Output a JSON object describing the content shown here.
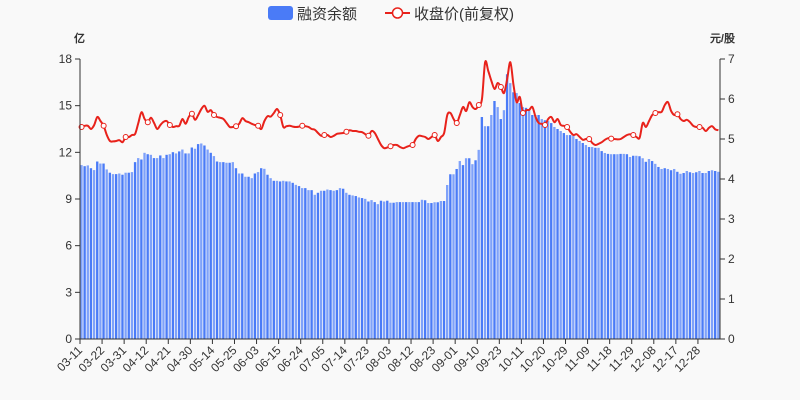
{
  "chart_data": {
    "type": "bar+line",
    "legend": {
      "placement": "top-center",
      "items": [
        "融资余额",
        "收盘价(前复权)"
      ]
    },
    "left_axis": {
      "name": "亿",
      "range": [
        0,
        18
      ],
      "ticks": [
        "0",
        "3",
        "6",
        "9",
        "12",
        "15",
        "18"
      ]
    },
    "right_axis": {
      "name": "元/股",
      "range": [
        0,
        7
      ],
      "ticks": [
        "0",
        "1",
        "2",
        "3",
        "4",
        "5",
        "6",
        "7"
      ]
    },
    "x_tick_labels": [
      "03-11",
      "03-22",
      "03-31",
      "04-12",
      "04-21",
      "04-30",
      "05-14",
      "05-25",
      "06-03",
      "06-15",
      "06-24",
      "07-05",
      "07-14",
      "07-23",
      "08-03",
      "08-12",
      "08-23",
      "09-01",
      "09-10",
      "09-23",
      "10-11",
      "10-20",
      "10-29",
      "11-09",
      "11-18",
      "11-29",
      "12-08",
      "12-17",
      "12-28"
    ],
    "x_tick_interval": 7,
    "colors": {
      "bar": "#4a7bf7",
      "bar_alt": "#7fa2fa",
      "line": "#e8221b",
      "marker_fill": "#ffffff"
    },
    "series": [
      {
        "name": "融资余额",
        "type": "bar",
        "axis": "left",
        "values": [
          11.18,
          11.11,
          11.16,
          10.98,
          10.86,
          11.41,
          11.28,
          11.28,
          10.9,
          10.69,
          10.6,
          10.6,
          10.64,
          10.56,
          10.69,
          10.69,
          10.73,
          11.37,
          11.63,
          11.54,
          11.97,
          11.88,
          11.84,
          11.63,
          11.63,
          11.8,
          11.63,
          11.84,
          11.88,
          12.01,
          11.93,
          12.06,
          12.18,
          11.93,
          11.93,
          12.31,
          12.23,
          12.53,
          12.57,
          12.44,
          12.18,
          11.97,
          11.76,
          11.41,
          11.37,
          11.37,
          11.33,
          11.33,
          11.37,
          10.98,
          10.64,
          10.64,
          10.43,
          10.43,
          10.34,
          10.64,
          10.73,
          10.98,
          10.94,
          10.56,
          10.34,
          10.17,
          10.17,
          10.13,
          10.17,
          10.13,
          10.13,
          10.04,
          9.91,
          9.83,
          9.7,
          9.7,
          9.57,
          9.57,
          9.27,
          9.4,
          9.53,
          9.53,
          9.61,
          9.57,
          9.53,
          9.57,
          9.7,
          9.66,
          9.4,
          9.27,
          9.23,
          9.19,
          9.1,
          9.06,
          9.01,
          8.84,
          8.93,
          8.8,
          8.67,
          8.89,
          8.84,
          8.89,
          8.76,
          8.76,
          8.8,
          8.8,
          8.8,
          8.8,
          8.8,
          8.8,
          8.8,
          8.8,
          8.95,
          8.92,
          8.74,
          8.74,
          8.79,
          8.79,
          8.87,
          8.87,
          9.9,
          10.59,
          10.59,
          10.93,
          11.44,
          11.18,
          11.62,
          11.62,
          11.24,
          11.49,
          12.16,
          14.27,
          13.68,
          13.68,
          14.4,
          15.3,
          14.91,
          14.14,
          14.71,
          17.02,
          16.45,
          15.86,
          15.81,
          15.17,
          14.91,
          14.86,
          14.78,
          14.4,
          14.4,
          14.4,
          14.14,
          14.06,
          14.01,
          13.88,
          13.63,
          13.5,
          13.37,
          13.24,
          13.11,
          13.11,
          13.06,
          12.86,
          12.73,
          12.6,
          12.47,
          12.34,
          12.34,
          12.29,
          12.29,
          12.08,
          11.96,
          11.9,
          11.88,
          11.88,
          11.88,
          11.9,
          11.9,
          11.88,
          11.7,
          11.78,
          11.78,
          11.75,
          11.62,
          11.39,
          11.57,
          11.44,
          11.26,
          11.06,
          10.93,
          10.98,
          10.93,
          10.85,
          10.93,
          10.75,
          10.62,
          10.67,
          10.8,
          10.72,
          10.67,
          10.72,
          10.8,
          10.67,
          10.67,
          10.8,
          10.85,
          10.8,
          10.75
        ]
      },
      {
        "name": "收盘价(前复权)",
        "type": "line",
        "axis": "right",
        "values": [
          5.3,
          5.33,
          5.33,
          5.25,
          5.35,
          5.55,
          5.45,
          5.33,
          5.1,
          4.95,
          4.94,
          4.95,
          4.97,
          4.92,
          5.05,
          5.05,
          5.1,
          5.13,
          5.4,
          5.67,
          5.5,
          5.42,
          5.53,
          5.4,
          5.25,
          5.35,
          5.43,
          5.45,
          5.35,
          5.3,
          5.32,
          5.33,
          5.5,
          5.38,
          5.55,
          5.63,
          5.48,
          5.6,
          5.75,
          5.83,
          5.68,
          5.72,
          5.6,
          5.55,
          5.53,
          5.5,
          5.4,
          5.3,
          5.3,
          5.32,
          5.38,
          5.52,
          5.45,
          5.42,
          5.38,
          5.35,
          5.33,
          5.25,
          5.45,
          5.57,
          5.56,
          5.65,
          5.75,
          5.6,
          5.3,
          5.32,
          5.33,
          5.31,
          5.3,
          5.31,
          5.33,
          5.32,
          5.3,
          5.25,
          5.23,
          5.15,
          5.08,
          5.1,
          5.1,
          5.05,
          5.08,
          5.13,
          5.14,
          5.15,
          5.18,
          5.22,
          5.2,
          5.2,
          5.18,
          5.17,
          5.12,
          5.08,
          5.2,
          5.15,
          5.0,
          4.85,
          4.77,
          4.79,
          4.82,
          4.85,
          4.85,
          4.8,
          4.77,
          4.8,
          4.83,
          4.85,
          5.0,
          5.08,
          5.07,
          5.05,
          5.0,
          5.05,
          5.1,
          4.95,
          5.05,
          5.15,
          5.6,
          5.65,
          5.5,
          5.4,
          5.6,
          5.8,
          5.7,
          5.92,
          5.8,
          5.75,
          5.85,
          6.0,
          6.92,
          6.7,
          6.45,
          6.25,
          6.4,
          6.3,
          6.15,
          6.5,
          6.92,
          6.35,
          5.92,
          6.05,
          5.65,
          5.72,
          5.73,
          5.8,
          5.55,
          5.4,
          5.38,
          5.35,
          5.5,
          5.55,
          5.42,
          5.5,
          5.35,
          5.33,
          5.3,
          5.18,
          5.1,
          5.12,
          5.05,
          4.98,
          5.0,
          5.0,
          4.9,
          4.85,
          4.88,
          4.92,
          4.98,
          5.02,
          5.01,
          5.0,
          4.99,
          5.0,
          5.05,
          5.1,
          5.12,
          5.1,
          5.05,
          5.03,
          5.4,
          5.3,
          5.45,
          5.6,
          5.65,
          5.67,
          5.68,
          5.85,
          5.92,
          5.7,
          5.6,
          5.62,
          5.5,
          5.45,
          5.48,
          5.42,
          5.33,
          5.3,
          5.3,
          5.28,
          5.2,
          5.28,
          5.32,
          5.24,
          5.22
        ]
      }
    ]
  }
}
